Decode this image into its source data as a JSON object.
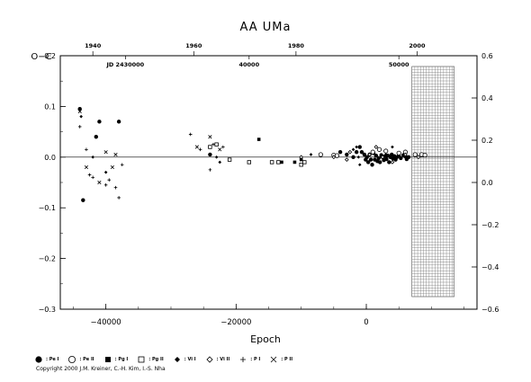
{
  "chart_data": {
    "type": "scatter",
    "title": "AA  UMa",
    "xlabel": "Epoch",
    "ylabel": "O−C",
    "xlim": [
      -47000,
      17000
    ],
    "ylim": [
      -0.3,
      0.2
    ],
    "right_ylim": [
      -0.6,
      0.6
    ],
    "x_ticks": [
      -40000,
      -20000,
      0
    ],
    "x_tick_labels": [
      "−40000",
      "−20000",
      "0"
    ],
    "y_ticks": [
      -0.3,
      -0.2,
      -0.1,
      0.0,
      0.1,
      0.2
    ],
    "y_tick_labels": [
      "−0.3",
      "−0.2",
      "−0.1",
      "0.0",
      "0.1",
      "0·2"
    ],
    "right_y_ticks": [
      -0.6,
      -0.4,
      -0.2,
      0.0,
      0.2,
      0.4,
      0.6
    ],
    "right_y_tick_labels": [
      "−0.6",
      "−0.4",
      "−0.2",
      "0.0",
      "0.2",
      "0.4",
      "0.6"
    ],
    "top_year_ticks": [
      {
        "label": "1940",
        "epoch": -42000
      },
      {
        "label": "1960",
        "epoch": -26500
      },
      {
        "label": "1980",
        "epoch": -10800
      },
      {
        "label": "2000",
        "epoch": 7800
      }
    ],
    "jd_ticks": [
      {
        "label": "JD 2430000",
        "epoch": -37000
      },
      {
        "label": "40000",
        "epoch": -18000
      },
      {
        "label": "50000",
        "epoch": 5000
      }
    ],
    "hatched_region_epoch": [
      7000,
      13500
    ],
    "zero_line": true,
    "legend_placement": "bottom",
    "series": [
      {
        "name": "Pe I",
        "marker": "filled-circle",
        "points": [
          [
            -44000,
            0.095
          ],
          [
            -41000,
            0.07
          ],
          [
            -38000,
            0.07
          ],
          [
            -41500,
            0.04
          ],
          [
            -43500,
            -0.085
          ],
          [
            -24000,
            0.005
          ],
          [
            -4000,
            0.01
          ],
          [
            -3000,
            0.005
          ],
          [
            -2000,
            0.0
          ],
          [
            -1500,
            0.01
          ],
          [
            -1000,
            0.02
          ],
          [
            -700,
            0.01
          ],
          [
            -300,
            0.005
          ],
          [
            -100,
            -0.005
          ],
          [
            100,
            0.0
          ],
          [
            300,
            -0.01
          ],
          [
            500,
            0.005
          ],
          [
            700,
            -0.005
          ],
          [
            900,
            -0.015
          ],
          [
            1100,
            0.008
          ],
          [
            1300,
            -0.005
          ],
          [
            1500,
            0.003
          ],
          [
            1700,
            -0.008
          ],
          [
            1900,
            -0.002
          ],
          [
            2100,
            -0.01
          ],
          [
            2300,
            0.004
          ],
          [
            2500,
            0.0
          ],
          [
            2700,
            -0.006
          ],
          [
            2900,
            0.002
          ],
          [
            3100,
            -0.004
          ],
          [
            3300,
            0.003
          ],
          [
            3500,
            -0.01
          ],
          [
            3700,
            0.0
          ],
          [
            3900,
            0.005
          ],
          [
            4100,
            -0.003
          ],
          [
            4300,
            0.002
          ],
          [
            4500,
            -0.005
          ],
          [
            4700,
            0.0
          ],
          [
            5000,
            0.003
          ],
          [
            5300,
            -0.002
          ],
          [
            5700,
            0.004
          ],
          [
            6000,
            0.001
          ],
          [
            6200,
            -0.004
          ],
          [
            6500,
            0.0
          ]
        ]
      },
      {
        "name": "Pe II",
        "marker": "open-circle",
        "points": [
          [
            -7000,
            0.005
          ],
          [
            -5000,
            0.004
          ],
          [
            -4500,
            0.003
          ],
          [
            1000,
            0.01
          ],
          [
            2000,
            0.015
          ],
          [
            3000,
            0.012
          ],
          [
            5000,
            0.008
          ],
          [
            6000,
            0.01
          ],
          [
            7500,
            0.005
          ],
          [
            8500,
            0.005
          ],
          [
            9000,
            0.004
          ]
        ]
      },
      {
        "name": "Pg I",
        "marker": "filled-square",
        "points": [
          [
            -16500,
            0.035
          ],
          [
            -13000,
            -0.01
          ],
          [
            -11000,
            -0.01
          ],
          [
            -10000,
            -0.005
          ]
        ]
      },
      {
        "name": "Pg II",
        "marker": "open-square",
        "points": [
          [
            -24000,
            0.02
          ],
          [
            -23000,
            0.025
          ],
          [
            -21000,
            -0.005
          ],
          [
            -18000,
            -0.01
          ],
          [
            -14500,
            -0.01
          ],
          [
            -13500,
            -0.01
          ],
          [
            -10000,
            -0.015
          ],
          [
            -9500,
            -0.01
          ]
        ]
      },
      {
        "name": "Vi I",
        "marker": "filled-diamond",
        "points": [
          [
            -43800,
            0.08
          ],
          [
            -42000,
            0.0
          ],
          [
            -40000,
            -0.03
          ],
          [
            -23000,
            0.0
          ],
          [
            -22500,
            -0.01
          ],
          [
            -10000,
            0.0
          ],
          [
            -8500,
            0.005
          ],
          [
            -2000,
            0.015
          ],
          [
            -1500,
            0.02
          ],
          [
            -1200,
            0.0
          ],
          [
            -1000,
            -0.015
          ],
          [
            3000,
            0.005
          ],
          [
            4000,
            0.02
          ]
        ]
      },
      {
        "name": "Vi II",
        "marker": "open-diamond",
        "points": [
          [
            -10000,
            0.0
          ],
          [
            -5000,
            0.0
          ],
          [
            -3000,
            -0.005
          ],
          [
            -2500,
            0.01
          ],
          [
            500,
            0.005
          ],
          [
            1500,
            0.02
          ],
          [
            2500,
            0.0
          ],
          [
            4000,
            -0.01
          ],
          [
            6000,
            0.005
          ],
          [
            8000,
            0.0
          ]
        ]
      },
      {
        "name": "P I",
        "marker": "plus",
        "points": [
          [
            -44000,
            0.06
          ],
          [
            -43000,
            0.015
          ],
          [
            -42500,
            -0.035
          ],
          [
            -42000,
            -0.04
          ],
          [
            -40000,
            -0.055
          ],
          [
            -39500,
            -0.045
          ],
          [
            -38500,
            -0.06
          ],
          [
            -38000,
            -0.08
          ],
          [
            -37500,
            -0.015
          ],
          [
            -27000,
            0.045
          ],
          [
            -25500,
            0.015
          ],
          [
            -24000,
            -0.025
          ],
          [
            -23500,
            0.025
          ],
          [
            -22000,
            0.02
          ]
        ]
      },
      {
        "name": "P II",
        "marker": "cross",
        "points": [
          [
            -44000,
            0.09
          ],
          [
            -43000,
            -0.02
          ],
          [
            -41000,
            -0.05
          ],
          [
            -40000,
            0.01
          ],
          [
            -39000,
            -0.02
          ],
          [
            -38500,
            0.005
          ],
          [
            -26000,
            0.02
          ],
          [
            -24000,
            0.04
          ],
          [
            -22500,
            0.015
          ]
        ]
      }
    ]
  },
  "copyright": "Copyright 2000 J.M. Kreiner, C.-H. Kim, I.-S. Nha"
}
